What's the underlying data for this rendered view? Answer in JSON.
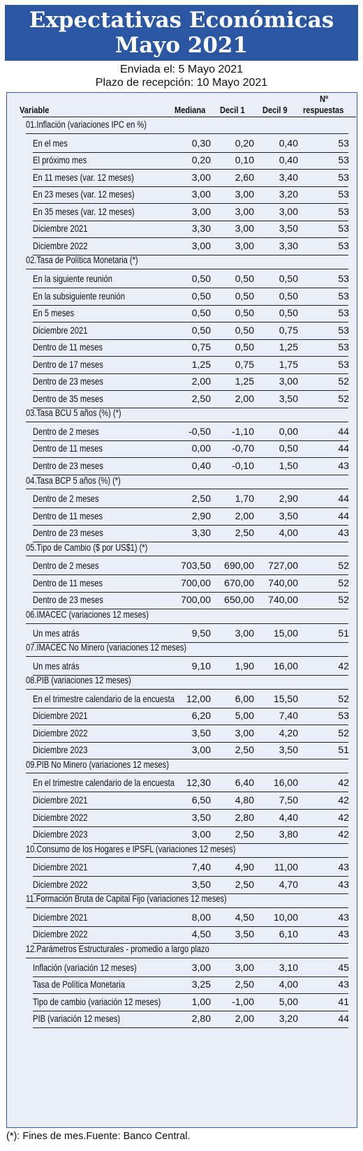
{
  "header": {
    "title_line1": "Expectativas Económicas",
    "title_line2": "Mayo 2021"
  },
  "sent_line": "Enviada el: 5 Mayo 2021",
  "deadline_line": "Plazo de recepción: 10 Mayo 2021",
  "columns": {
    "variable": "Variable",
    "mediana": "Mediana",
    "decil1": "Decil 1",
    "decil9": "Decil 9",
    "respuestas_1": "Nº",
    "respuestas_2": "respuestas"
  },
  "sections": [
    {
      "title": "01.Inflación (variaciones IPC en %)",
      "rows": [
        {
          "label": "En el mes",
          "mediana": "0,30",
          "decil1": "0,20",
          "decil9": "0,40",
          "n": "53"
        },
        {
          "label": "El próximo mes",
          "mediana": "0,20",
          "decil1": "0,10",
          "decil9": "0,40",
          "n": "53"
        },
        {
          "label": "En 11 meses (var. 12 meses)",
          "mediana": "3,00",
          "decil1": "2,60",
          "decil9": "3,40",
          "n": "53"
        },
        {
          "label": "En 23 meses (var. 12 meses)",
          "mediana": "3,00",
          "decil1": "3,00",
          "decil9": "3,20",
          "n": "53"
        },
        {
          "label": "En 35 meses (var. 12 meses)",
          "mediana": "3,00",
          "decil1": "3,00",
          "decil9": "3,00",
          "n": "53"
        },
        {
          "label": "Diciembre 2021",
          "mediana": "3,30",
          "decil1": "3,00",
          "decil9": "3,50",
          "n": "53"
        },
        {
          "label": "Diciembre 2022",
          "mediana": "3,00",
          "decil1": "3,00",
          "decil9": "3,30",
          "n": "53"
        }
      ]
    },
    {
      "title": "02.Tasa de Política Monetaria (*)",
      "rows": [
        {
          "label": "En la siguiente reunión",
          "mediana": "0,50",
          "decil1": "0,50",
          "decil9": "0,50",
          "n": "53"
        },
        {
          "label": "En la subsiguiente reunión",
          "mediana": "0,50",
          "decil1": "0,50",
          "decil9": "0,50",
          "n": "53"
        },
        {
          "label": "En 5 meses",
          "mediana": "0,50",
          "decil1": "0,50",
          "decil9": "0,50",
          "n": "53"
        },
        {
          "label": "Diciembre 2021",
          "mediana": "0,50",
          "decil1": "0,50",
          "decil9": "0,75",
          "n": "53"
        },
        {
          "label": "Dentro de 11 meses",
          "mediana": "0,75",
          "decil1": "0,50",
          "decil9": "1,25",
          "n": "53"
        },
        {
          "label": "Dentro de 17 meses",
          "mediana": "1,25",
          "decil1": "0,75",
          "decil9": "1,75",
          "n": "53"
        },
        {
          "label": "Dentro de 23 meses",
          "mediana": "2,00",
          "decil1": "1,25",
          "decil9": "3,00",
          "n": "52"
        },
        {
          "label": "Dentro de 35 meses",
          "mediana": "2,50",
          "decil1": "2,00",
          "decil9": "3,50",
          "n": "52"
        }
      ]
    },
    {
      "title": "03.Tasa BCU 5 años (%) (*)",
      "rows": [
        {
          "label": "Dentro de 2 meses",
          "mediana": "-0,50",
          "decil1": "-1,10",
          "decil9": "0,00",
          "n": "44"
        },
        {
          "label": "Dentro de 11 meses",
          "mediana": "0,00",
          "decil1": "-0,70",
          "decil9": "0,50",
          "n": "44"
        },
        {
          "label": "Dentro de 23 meses",
          "mediana": "0,40",
          "decil1": "-0,10",
          "decil9": "1,50",
          "n": "43"
        }
      ]
    },
    {
      "title": "04.Tasa BCP 5 años (%) (*)",
      "rows": [
        {
          "label": "Dentro de 2 meses",
          "mediana": "2,50",
          "decil1": "1,70",
          "decil9": "2,90",
          "n": "44"
        },
        {
          "label": "Dentro de 11 meses",
          "mediana": "2,90",
          "decil1": "2,00",
          "decil9": "3,50",
          "n": "44"
        },
        {
          "label": "Dentro de 23 meses",
          "mediana": "3,30",
          "decil1": "2,50",
          "decil9": "4,00",
          "n": "43"
        }
      ]
    },
    {
      "title": "05.Tipo de Cambio ($ por US$1) (*)",
      "rows": [
        {
          "label": "Dentro de 2 meses",
          "mediana": "703,50",
          "decil1": "690,00",
          "decil9": "727,00",
          "n": "52"
        },
        {
          "label": "Dentro de 11 meses",
          "mediana": "700,00",
          "decil1": "670,00",
          "decil9": "740,00",
          "n": "52"
        },
        {
          "label": "Dentro de 23 meses",
          "mediana": "700,00",
          "decil1": "650,00",
          "decil9": "740,00",
          "n": "52"
        }
      ]
    },
    {
      "title": "06.IMACEC (variaciones 12 meses)",
      "rows": [
        {
          "label": "Un mes atrás",
          "mediana": "9,50",
          "decil1": "3,00",
          "decil9": "15,00",
          "n": "51"
        }
      ]
    },
    {
      "title": "07.IMACEC No Minero (variaciones 12 meses)",
      "rows": [
        {
          "label": "Un mes atrás",
          "mediana": "9,10",
          "decil1": "1,90",
          "decil9": "16,00",
          "n": "42"
        }
      ]
    },
    {
      "title": "08.PIB (variaciones 12 meses)",
      "rows": [
        {
          "label": "En el trimestre calendario de la encuesta",
          "mediana": "12,00",
          "decil1": "6,00",
          "decil9": "15,50",
          "n": "52"
        },
        {
          "label": "Diciembre 2021",
          "mediana": "6,20",
          "decil1": "5,00",
          "decil9": "7,40",
          "n": "53"
        },
        {
          "label": "Diciembre 2022",
          "mediana": "3,50",
          "decil1": "3,00",
          "decil9": "4,20",
          "n": "52"
        },
        {
          "label": "Diciembre 2023",
          "mediana": "3,00",
          "decil1": "2,50",
          "decil9": "3,50",
          "n": "51"
        }
      ]
    },
    {
      "title": "09.PIB No Minero (variaciones 12 meses)",
      "rows": [
        {
          "label": "En el trimestre calendario de la encuesta",
          "mediana": "12,30",
          "decil1": "6,40",
          "decil9": "16,00",
          "n": "42"
        },
        {
          "label": "Diciembre 2021",
          "mediana": "6,50",
          "decil1": "4,80",
          "decil9": "7,50",
          "n": "42"
        },
        {
          "label": "Diciembre 2022",
          "mediana": "3,50",
          "decil1": "2,80",
          "decil9": "4,40",
          "n": "42"
        },
        {
          "label": "Diciembre 2023",
          "mediana": "3,00",
          "decil1": "2,50",
          "decil9": "3,80",
          "n": "42"
        }
      ]
    },
    {
      "title": "10.Consumo de los Hogares e IPSFL (variaciones 12 meses)",
      "rows": [
        {
          "label": "Diciembre 2021",
          "mediana": "7,40",
          "decil1": "4,90",
          "decil9": "11,00",
          "n": "43"
        },
        {
          "label": "Diciembre 2022",
          "mediana": "3,50",
          "decil1": "2,50",
          "decil9": "4,70",
          "n": "43"
        }
      ]
    },
    {
      "title": "11.Formación Bruta de Capital Fijo (variaciones 12 meses)",
      "rows": [
        {
          "label": "Diciembre 2021",
          "mediana": "8,00",
          "decil1": "4,50",
          "decil9": "10,00",
          "n": "43"
        },
        {
          "label": "Diciembre 2022",
          "mediana": "4,50",
          "decil1": "3,50",
          "decil9": "6,10",
          "n": "43"
        }
      ]
    },
    {
      "title": "12.Parámetros Estructurales - promedio a largo plazo",
      "rows": [
        {
          "label": "Inflación (variación 12 meses)",
          "mediana": "3,00",
          "decil1": "3,00",
          "decil9": "3,10",
          "n": "45"
        },
        {
          "label": "Tasa de Política Monetaria",
          "mediana": "3,25",
          "decil1": "2,50",
          "decil9": "4,00",
          "n": "43"
        },
        {
          "label": "Tipo de cambio (variación 12 meses)",
          "mediana": "1,00",
          "decil1": "-1,00",
          "decil9": "5,00",
          "n": "41"
        },
        {
          "label": "PIB (variación 12 meses)",
          "mediana": "2,80",
          "decil1": "2,00",
          "decil9": "3,20",
          "n": "44"
        }
      ]
    }
  ],
  "footnote": "(*): Fines de mes.Fuente: Banco Central."
}
